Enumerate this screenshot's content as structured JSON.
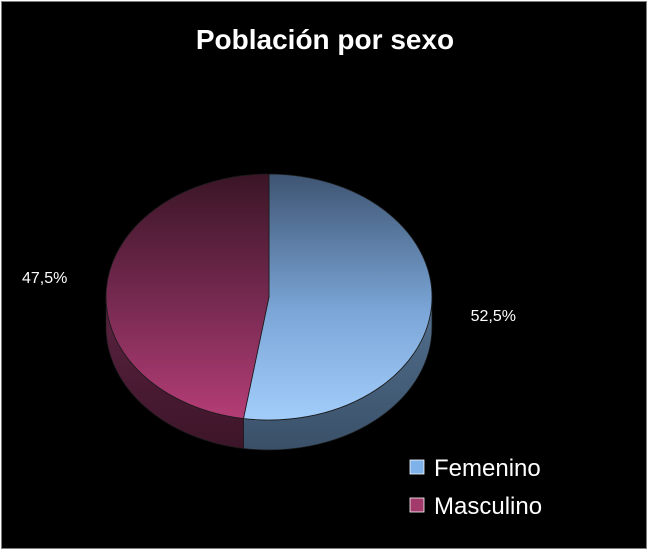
{
  "chart_data": {
    "type": "pie",
    "title": "Población por sexo",
    "categories": [
      "Femenino",
      "Masculino"
    ],
    "values": [
      52.5,
      47.5
    ],
    "data_labels": [
      "52,5%",
      "47,5%"
    ],
    "colors": [
      "#7fb2e8",
      "#a33a6c"
    ],
    "legend_position": "bottom-right",
    "three_d": true
  }
}
